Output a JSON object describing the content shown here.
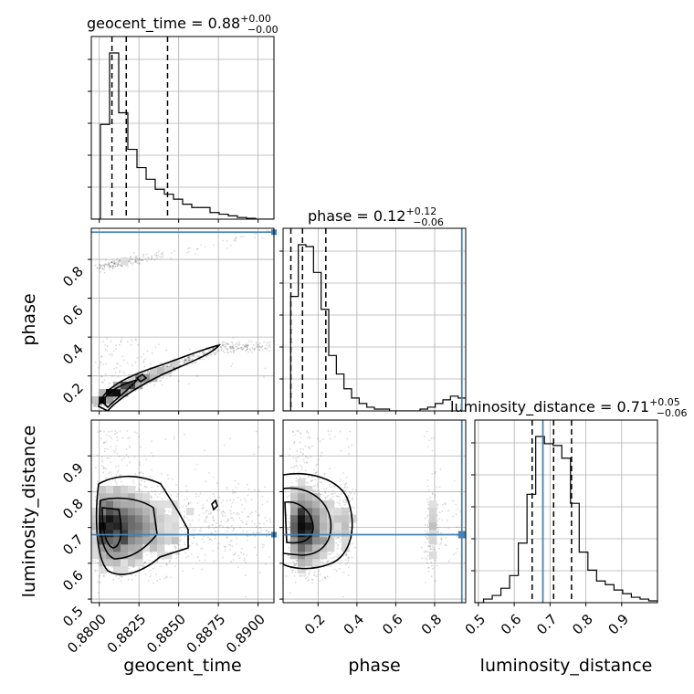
{
  "chart_data": {
    "type": "corner",
    "parameters": [
      "geocent_time",
      "phase",
      "luminosity_distance"
    ],
    "titles": [
      {
        "param": "geocent_time",
        "value": "0.88",
        "plus": "+0.00",
        "minus": "−0.00"
      },
      {
        "param": "phase",
        "value": "0.12",
        "plus": "+0.12",
        "minus": "−0.06"
      },
      {
        "param": "luminosity_distance",
        "value": "0.71",
        "plus": "+0.05",
        "minus": "−0.06"
      }
    ],
    "xlabels": [
      "geocent_time",
      "phase",
      "luminosity_distance"
    ],
    "ylabels": [
      "phase",
      "luminosity_distance"
    ],
    "ranges": {
      "geocent_time": [
        0.8795,
        0.891
      ],
      "phase": [
        0.02,
        0.96
      ],
      "luminosity_distance": [
        0.49,
        1.0
      ]
    },
    "ticks": {
      "geocent_time": [
        "0.8800",
        "0.8825",
        "0.8850",
        "0.8875",
        "0.8900"
      ],
      "phase": [
        "0.2",
        "0.4",
        "0.6",
        "0.8"
      ],
      "luminosity_distance": [
        "0.5",
        "0.6",
        "0.7",
        "0.8",
        "0.9"
      ]
    },
    "tick_values": {
      "geocent_time": [
        0.88,
        0.8825,
        0.885,
        0.8875,
        0.89
      ],
      "phase": [
        0.2,
        0.4,
        0.6,
        0.8
      ],
      "luminosity_distance": [
        0.5,
        0.6,
        0.7,
        0.8,
        0.9
      ]
    },
    "quantiles": {
      "geocent_time": [
        0.8808,
        0.8817,
        0.8843
      ],
      "phase": [
        0.06,
        0.12,
        0.24
      ],
      "luminosity_distance": [
        0.65,
        0.71,
        0.76
      ]
    },
    "truths": {
      "geocent_time": null,
      "phase": 0.94,
      "luminosity_distance": 0.68
    },
    "histograms": {
      "geocent_time": {
        "edges_start": 0.8795,
        "edges_end": 0.891,
        "counts": [
          0.0,
          0.57,
          1.0,
          0.64,
          0.42,
          0.31,
          0.24,
          0.18,
          0.15,
          0.12,
          0.09,
          0.07,
          0.07,
          0.04,
          0.03,
          0.02,
          0.01,
          0.005,
          0.0,
          0.0
        ]
      },
      "phase": {
        "edges_start": 0.02,
        "edges_end": 0.96,
        "counts": [
          0.0,
          0.62,
          0.9,
          0.89,
          0.75,
          0.55,
          0.3,
          0.2,
          0.12,
          0.07,
          0.04,
          0.02,
          0.01,
          0.01,
          0.0,
          0.0,
          0.0,
          0.0,
          0.01,
          0.02,
          0.04,
          0.06,
          0.08,
          0.07
        ]
      },
      "luminosity_distance": {
        "edges_start": 0.49,
        "edges_end": 1.0,
        "counts": [
          0.0,
          0.02,
          0.04,
          0.08,
          0.15,
          0.33,
          0.6,
          0.92,
          0.88,
          0.87,
          0.8,
          0.55,
          0.28,
          0.18,
          0.12,
          0.1,
          0.07,
          0.05,
          0.03,
          0.02,
          0.01
        ]
      }
    },
    "grid": true
  }
}
